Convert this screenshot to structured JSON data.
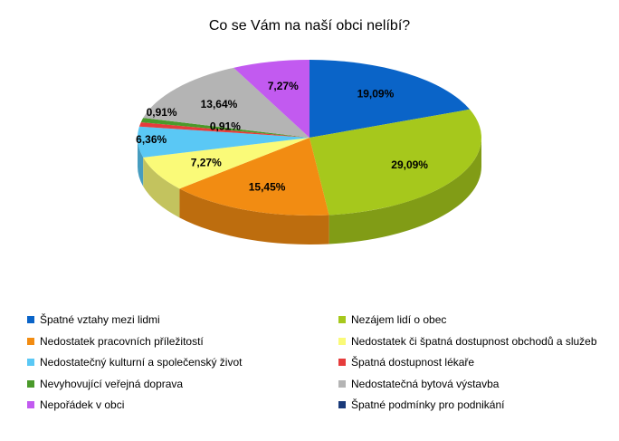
{
  "chart_data": {
    "type": "pie",
    "title": "Co se Vám na naší obci nelíbí?",
    "slices": [
      {
        "name": "Špatné vztahy mezi lidmi",
        "value": 19.09,
        "label": "19,09%",
        "color": "#0a64c8"
      },
      {
        "name": "Nezájem lidí o obec",
        "value": 29.09,
        "label": "29,09%",
        "color": "#a6c81c"
      },
      {
        "name": "Nedostatek pracovních příležitostí",
        "value": 15.45,
        "label": "15,45%",
        "color": "#f28c12"
      },
      {
        "name": "Nedostatek či špatná dostupnost obchodů a služeb",
        "value": 7.27,
        "label": "7,27%",
        "color": "#fafa78"
      },
      {
        "name": "Nedostatečný kulturní a společenský život",
        "value": 6.36,
        "label": "6,36%",
        "color": "#5ac8f5"
      },
      {
        "name": "Špatná dostupnost lékaře",
        "value": 0.91,
        "label": "0,91%",
        "color": "#e63c3c"
      },
      {
        "name": "Nevyhovující veřejná doprava",
        "value": 0.91,
        "label": "0,91%",
        "color": "#4a9a2a"
      },
      {
        "name": "Nedostatečná bytová výstavba",
        "value": 13.64,
        "label": "13,64%",
        "color": "#b4b4b4"
      },
      {
        "name": "Nepořádek v obci",
        "value": 7.27,
        "label": "7,27%",
        "color": "#c25af0"
      },
      {
        "name": "Špatné podmínky pro podnikání",
        "value": 0,
        "label": "",
        "color": "#1a3a7a"
      }
    ],
    "legend_position": "bottom"
  }
}
